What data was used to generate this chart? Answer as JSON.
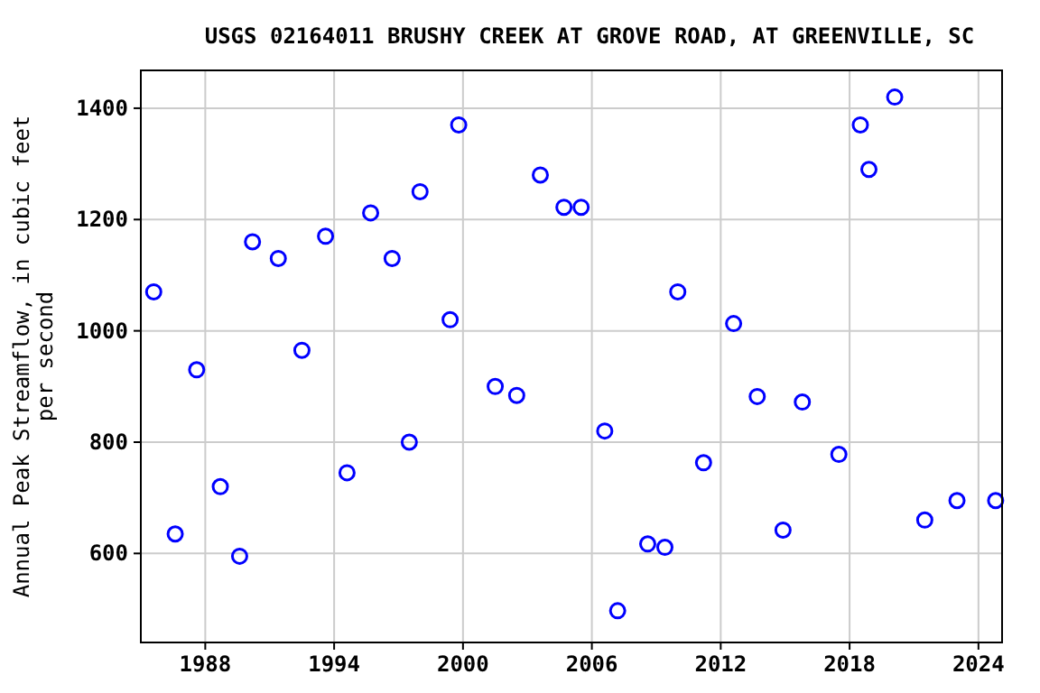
{
  "chart_data": {
    "type": "scatter",
    "title": "USGS 02164011 BRUSHY CREEK AT GROVE ROAD, AT GREENVILLE, SC",
    "ylabel": "Annual Peak Streamflow, in cubic feet per second",
    "x": [
      1985.6,
      1986.6,
      1987.6,
      1988.7,
      1989.6,
      1990.2,
      1991.4,
      1992.5,
      1993.6,
      1994.6,
      1995.7,
      1996.7,
      1997.5,
      1998.0,
      1999.4,
      1999.8,
      2001.5,
      2002.5,
      2003.6,
      2004.7,
      2005.5,
      2006.6,
      2007.2,
      2008.6,
      2009.4,
      2010.0,
      2011.2,
      2012.6,
      2013.7,
      2014.9,
      2015.8,
      2017.5,
      2018.5,
      2018.9,
      2020.1,
      2021.5,
      2023.0,
      2024.8
    ],
    "series": [
      {
        "color": "#0000ff",
        "values": [
          1070,
          635,
          930,
          720,
          595,
          1160,
          1130,
          965,
          1170,
          745,
          1212,
          1130,
          800,
          1250,
          1020,
          1370,
          900,
          884,
          1280,
          1222,
          1222,
          820,
          497,
          617,
          611,
          1070,
          763,
          1013,
          882,
          642,
          872,
          778,
          1370,
          1290,
          1420,
          660,
          695,
          695
        ]
      }
    ],
    "xlim": [
      1985,
      2025.1
    ],
    "ylim": [
      440,
      1468
    ],
    "xticks": [
      1988,
      1994,
      2000,
      2006,
      2012,
      2018,
      2024
    ],
    "yticks": [
      600,
      800,
      1000,
      1200,
      1400
    ],
    "grid": true,
    "marker": "circle"
  }
}
